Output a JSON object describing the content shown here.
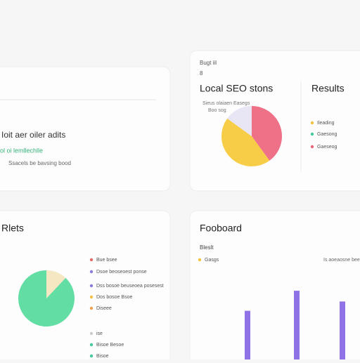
{
  "cards": [
    {
      "title": "Ioit aer oiler adits",
      "highlight": "ol oi lemllechlle",
      "caption": "Ssacels be bavsing bood"
    },
    {
      "kicker": "Bugt iil",
      "number": "8",
      "title": "Local SEO stons",
      "side_title": "Results",
      "notes": [
        "Sieus olaiaen Easegs",
        "Boo sog"
      ],
      "pie": {
        "type": "pie",
        "values": [
          40,
          45,
          15
        ],
        "colors": [
          "#ee7188",
          "#f7cd47",
          "#e8e6f4"
        ]
      },
      "legend": [
        {
          "name": "Ileading",
          "color": "#f3c23f"
        },
        {
          "name": "Gaesong",
          "color": "#43c99a"
        },
        {
          "name": "Gaeseog",
          "color": "#ea6477"
        }
      ]
    },
    {
      "title": "Rlets",
      "pie": {
        "type": "pie",
        "values": [
          12,
          88
        ],
        "colors": [
          "#f5e7c2",
          "#62dda3"
        ]
      },
      "legend": [
        {
          "name": "Bue bsee",
          "color": "#e56b6b"
        },
        {
          "name": "Dsoe beoseoest ponse",
          "color": "#8c7ad9"
        },
        {
          "name": "Dss bosoe beuseoea posesest",
          "color": "#8c7ad9"
        },
        {
          "name": "Dos bosoe Bsoe",
          "color": "#f2c145"
        },
        {
          "name": "Diseee",
          "color": "#f0a04b"
        },
        {
          "name": "ise",
          "color": "#cccccc"
        },
        {
          "name": "Bisoe Besoe",
          "color": "#43c99a"
        },
        {
          "name": "Bisoe",
          "color": "#43c99a"
        }
      ]
    },
    {
      "title": "Fooboard",
      "subtitle": "Bleslt",
      "legend": [
        {
          "name": "Gasgs",
          "color": "#f3c23f"
        }
      ],
      "note": "Is aoeaosne bee",
      "bars": {
        "type": "bar",
        "values": [
          68,
          96,
          81
        ],
        "ylim": [
          0,
          100
        ],
        "color": "#8f73e6"
      }
    }
  ]
}
